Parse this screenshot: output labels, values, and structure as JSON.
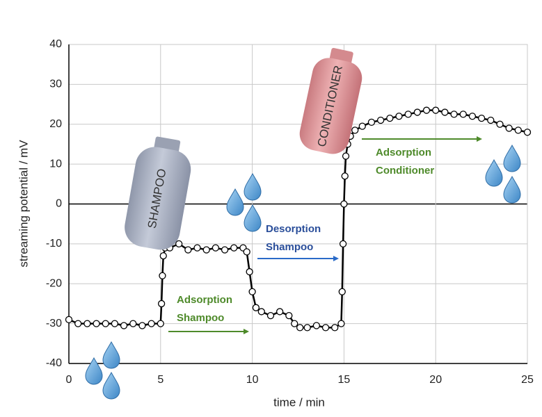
{
  "chart_data": {
    "type": "line",
    "x_label": "time / min",
    "y_label": "streaming potential / mV",
    "xlim": [
      0,
      25
    ],
    "xticks": [
      0,
      5,
      10,
      15,
      20,
      25
    ],
    "ylim": [
      -40,
      40
    ],
    "yticks": [
      -40,
      -30,
      -20,
      -10,
      0,
      10,
      20,
      30,
      40
    ],
    "grid": true,
    "series": [
      {
        "color": "#000000",
        "x": [
          0,
          0.5,
          1,
          1.5,
          2,
          2.5,
          3,
          3.5,
          4,
          4.5,
          5,
          5.05,
          5.1,
          5.15,
          5.25,
          5.5,
          6,
          6.5,
          7,
          7.5,
          8,
          8.5,
          9,
          9.5,
          9.7,
          9.85,
          10,
          10.2,
          10.5,
          11,
          11.5,
          12,
          12.3,
          12.6,
          13,
          13.5,
          14,
          14.5,
          14.85,
          14.9,
          14.95,
          15,
          15.05,
          15.1,
          15.2,
          15.35,
          15.6,
          16,
          16.5,
          17,
          17.5,
          18,
          18.5,
          19,
          19.5,
          20,
          20.5,
          21,
          21.5,
          22,
          22.5,
          23,
          23.5,
          24,
          24.5,
          25
        ],
        "values": [
          -29,
          -30,
          -30,
          -30,
          -30,
          -30,
          -30.5,
          -30,
          -30.5,
          -30,
          -30,
          -25,
          -18,
          -13,
          -11,
          -11,
          -10,
          -11.5,
          -11,
          -11.5,
          -11,
          -11.5,
          -11,
          -11,
          -12,
          -17,
          -22,
          -26,
          -27,
          -28,
          -27,
          -28,
          -30,
          -31,
          -31,
          -30.5,
          -31,
          -31,
          -30,
          -22,
          -10,
          0,
          7,
          12,
          15,
          17,
          18.5,
          19.5,
          20.5,
          21,
          21.5,
          22,
          22.5,
          23,
          23.5,
          23.5,
          23,
          22.5,
          22.5,
          22,
          21.5,
          21,
          20,
          19,
          18.5,
          18
        ]
      }
    ],
    "annotations": [
      {
        "lines": [
          "Adsorption",
          "Shampoo"
        ],
        "color": "#4e8a2a"
      },
      {
        "lines": [
          "Desorption",
          "Shampoo"
        ],
        "color": "#2a4e9a"
      },
      {
        "lines": [
          "Adsorption",
          "Conditioner"
        ],
        "color": "#4e8a2a"
      }
    ],
    "bottle_labels": [
      "SHAMPOO",
      "CONDITIONER"
    ]
  }
}
